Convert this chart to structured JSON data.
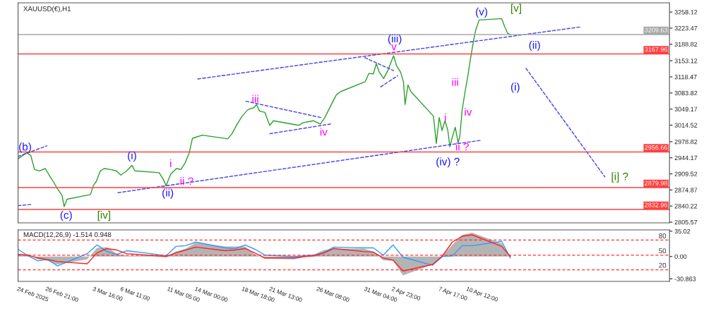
{
  "chart_data": [
    {
      "type": "line",
      "title": "XAUUSD(€),H1",
      "xlim": [
        "2025-02-24T00:00",
        "2025-05-01T00:00"
      ],
      "ylim": [
        2804,
        3278
      ],
      "tick_labels": "y",
      "grid": false,
      "legend": false,
      "xticks": [
        {
          "value": "2025-02-24T00:00",
          "label": null
        },
        {
          "value": "2025-02-26T21:00",
          "label": null
        },
        {
          "value": "2025-03-03T16:00",
          "label": null
        },
        {
          "value": "2025-03-06T11:00",
          "label": null
        },
        {
          "value": "2025-03-11T05:00",
          "label": null
        },
        {
          "value": "2025-03-14T00:00",
          "label": null
        },
        {
          "value": "2025-03-18T18:00",
          "label": null
        },
        {
          "value": "2025-03-21T13:00",
          "label": null
        },
        {
          "value": "2025-03-26T08:00",
          "label": null
        },
        {
          "value": "2025-03-31T04:00",
          "label": null
        },
        {
          "value": "2025-04-02T23:00",
          "label": null
        },
        {
          "value": "2025-04-07T17:00",
          "label": null
        },
        {
          "value": "2025-04-10T12:00",
          "label": null
        }
      ],
      "yticks": [
        2805.57,
        2840.22,
        2874.87,
        2909.52,
        2944.17,
        2978.82,
        3014.52,
        3049.17,
        3083.82,
        3118.47,
        3153.12,
        3188.82,
        3223.47,
        3258.12
      ],
      "series": [
        {
          "color": "#2ca02c",
          "x": [
            "2025-02-24T00:00",
            "2025-02-24T21:00",
            "2025-02-25T07:00",
            "2025-02-25T16:00",
            "2025-02-26T04:00",
            "2025-02-26T18:00",
            "2025-02-27T05:00",
            "2025-02-27T15:00",
            "2025-02-28T00:00",
            "2025-02-28T11:00",
            "2025-02-28T16:00",
            "2025-02-28T23:00",
            "2025-03-03T08:00",
            "2025-03-03T15:00",
            "2025-03-03T22:00",
            "2025-03-04T08:00",
            "2025-03-04T17:00",
            "2025-03-05T09:00",
            "2025-03-05T23:00",
            "2025-03-06T10:00",
            "2025-03-07T00:00",
            "2025-03-07T13:00",
            "2025-03-07T20:00",
            "2025-03-10T07:00",
            "2025-03-10T17:00",
            "2025-03-11T00:00",
            "2025-03-11T11:00",
            "2025-03-12T01:00",
            "2025-03-12T12:00",
            "2025-03-12T22:00",
            "2025-03-13T08:00",
            "2025-03-13T16:00",
            "2025-03-14T02:00",
            "2025-03-14T16:00",
            "2025-03-17T06:00",
            "2025-03-17T16:00",
            "2025-03-18T05:00",
            "2025-03-18T17:00",
            "2025-03-19T07:00",
            "2025-03-19T21:00",
            "2025-03-20T04:00",
            "2025-03-20T11:00",
            "2025-03-21T00:00",
            "2025-03-21T12:00",
            "2025-03-21T21:00",
            "2025-03-24T11:00",
            "2025-03-24T21:00",
            "2025-03-25T11:00",
            "2025-03-25T22:00",
            "2025-03-26T15:00",
            "2025-03-27T02:00",
            "2025-03-27T16:00",
            "2025-03-28T06:00",
            "2025-03-28T17:00",
            "2025-03-31T04:00",
            "2025-03-31T13:00",
            "2025-04-01T00:00",
            "2025-04-01T07:00",
            "2025-04-01T14:00",
            "2025-04-02T01:00",
            "2025-04-02T11:00",
            "2025-04-03T01:00",
            "2025-04-03T08:00",
            "2025-04-03T18:00",
            "2025-04-04T01:00",
            "2025-04-04T05:00",
            "2025-04-04T12:00",
            "2025-04-04T19:00",
            "2025-04-07T02:00",
            "2025-04-07T09:00",
            "2025-04-07T16:00",
            "2025-04-07T23:00",
            "2025-04-08T06:00",
            "2025-04-08T13:00",
            "2025-04-08T18:00",
            "2025-04-09T00:00",
            "2025-04-09T07:00",
            "2025-04-09T14:00",
            "2025-04-09T18:00",
            "2025-04-10T00:00",
            "2025-04-10T07:00",
            "2025-04-10T14:00",
            "2025-04-10T20:00",
            "2025-04-11T04:00",
            "2025-04-11T09:00",
            "2025-04-11T17:00",
            "2025-04-14T00:00",
            "2025-04-14T07:00",
            "2025-04-14T14:00",
            "2025-04-14T21:00"
          ],
          "values": [
            2942,
            2955,
            2949,
            2919,
            2916,
            2921,
            2905,
            2891,
            2877,
            2863,
            2839,
            2855,
            2865,
            2884,
            2893,
            2916,
            2921,
            2919,
            2916,
            2907,
            2916,
            2928,
            2916,
            2912,
            2898,
            2884,
            2909,
            2921,
            2919,
            2933,
            2954,
            2986,
            2989,
            2993,
            2985,
            2996,
            3017,
            3034,
            3048,
            3052,
            3059,
            3045,
            3042,
            3014,
            3024,
            3014,
            3020,
            3022,
            3024,
            3017,
            3031,
            3056,
            3080,
            3087,
            3108,
            3126,
            3125,
            3147,
            3129,
            3115,
            3132,
            3164,
            3143,
            3129,
            3108,
            3059,
            3101,
            3087,
            3034,
            2975,
            3031,
            3003,
            3024,
            3003,
            2968,
            2989,
            3010,
            2977,
            2989,
            3048,
            3087,
            3122,
            3157,
            3199,
            3220,
            3241,
            3244,
            3227,
            3213,
            3210
          ]
        },
        {
          "color": "#4040ee",
          "line_style": "dashed",
          "x": [
            "2025-02-24T00:00",
            "2025-02-25T11:00"
          ],
          "values": [
            2841,
            2844
          ]
        },
        {
          "color": "#4040ee",
          "line_style": "dashed",
          "x": [
            "2025-02-24T00:00",
            "2025-02-26T22:00"
          ],
          "values": [
            2947,
            2970
          ]
        },
        {
          "color": "#4040ee",
          "line_style": "dashed",
          "x": [
            "2025-03-06T03:00",
            "2025-04-11T22:00"
          ],
          "values": [
            2869,
            2982
          ]
        },
        {
          "color": "#4040ee",
          "line_style": "dashed",
          "x": [
            "2025-03-14T05:00",
            "2025-04-21T23:00"
          ],
          "values": [
            3114,
            3226
          ]
        },
        {
          "color": "#4040ee",
          "line_style": "dashed",
          "x": [
            "2025-03-19T02:00",
            "2025-03-26T16:00"
          ],
          "values": [
            3066,
            3031
          ]
        },
        {
          "color": "#4040ee",
          "line_style": "dashed",
          "x": [
            "2025-03-21T12:00",
            "2025-03-27T16:00"
          ],
          "values": [
            2996,
            3017
          ]
        },
        {
          "color": "#4040ee",
          "line_style": "dashed",
          "x": [
            "2025-03-31T03:00",
            "2025-04-03T01:00"
          ],
          "values": [
            3160,
            3132
          ]
        },
        {
          "color": "#4040ee",
          "line_style": "dashed",
          "x": [
            "2025-04-01T18:00",
            "2025-04-03T11:00"
          ],
          "values": [
            3097,
            3121
          ]
        },
        {
          "color": "#4040ee",
          "line_style": "dashed",
          "x": [
            "2025-04-16T11:00",
            "2025-04-24T11:00"
          ],
          "values": [
            3137,
            2903
          ]
        }
      ],
      "ref_lines": [
        {
          "axis": "y",
          "value": 3209.63,
          "label": "3209.63",
          "color": "#a8a8a8"
        },
        {
          "axis": "y",
          "value": 3167.96,
          "label": "3167.96",
          "color": "#ff4040"
        },
        {
          "axis": "y",
          "value": 2956.66,
          "label": "2956.66",
          "color": "#ff4040"
        },
        {
          "axis": "y",
          "value": 2879.98,
          "label": "2879.98",
          "color": "#ff4040"
        },
        {
          "axis": "y",
          "value": 2832.96,
          "label": "2832.96",
          "color": "#ff4040"
        }
      ],
      "annotations": [
        "(b)",
        "(c)",
        "[iv]",
        "(i)",
        "i",
        "ii ?",
        "(ii)",
        "iii",
        "iv",
        "(iii)",
        "v",
        "(iv) ?",
        "i",
        "ii ?",
        "iii",
        "iv",
        "(v)",
        "[v]",
        "(ii)",
        "(i)",
        "[i] ?"
      ]
    },
    {
      "type": "line",
      "title": "MACD(12,26,9) -1.514 0.948",
      "xlim": [
        "2025-02-24T00:00",
        "2025-05-01T00:00"
      ],
      "ylim": [
        -34.4,
        36.8
      ],
      "grid": false,
      "legend": false,
      "xticks": [
        {
          "value": "2025-02-24T00:00",
          "label": "24 Feb 2025"
        },
        {
          "value": "2025-02-26T21:00",
          "label": "26 Feb 21:00"
        },
        {
          "value": "2025-03-03T16:00",
          "label": "3 Mar 16:00"
        },
        {
          "value": "2025-03-06T11:00",
          "label": "6 Mar 11:00"
        },
        {
          "value": "2025-03-11T05:00",
          "label": "11 Mar 05:00"
        },
        {
          "value": "2025-03-14T00:00",
          "label": "14 Mar 00:00"
        },
        {
          "value": "2025-03-18T18:00",
          "label": "18 Mar 18:00"
        },
        {
          "value": "2025-03-21T13:00",
          "label": "21 Mar 13:00"
        },
        {
          "value": "2025-03-26T08:00",
          "label": "26 Mar 08:00"
        },
        {
          "value": "2025-03-31T04:00",
          "label": "31 Mar 04:00"
        },
        {
          "value": "2025-04-02T23:00",
          "label": "2 Apr 23:00"
        },
        {
          "value": "2025-04-07T17:00",
          "label": "7 Apr 17:00"
        },
        {
          "value": "2025-04-10T12:00",
          "label": "10 Apr 12:00"
        }
      ],
      "yticks": [
        -30.863,
        {
          "value": 0,
          "label": "0.00"
        },
        35.02
      ],
      "x": [
        "2025-02-24T00:00",
        "2025-02-25T00:00",
        "2025-02-26T00:00",
        "2025-02-27T00:00",
        "2025-02-28T00:00",
        "2025-03-03T00:00",
        "2025-03-04T00:00",
        "2025-03-05T00:00",
        "2025-03-06T00:00",
        "2025-03-07T00:00",
        "2025-03-10T00:00",
        "2025-03-11T00:00",
        "2025-03-12T00:00",
        "2025-03-13T00:00",
        "2025-03-14T00:00",
        "2025-03-17T00:00",
        "2025-03-18T00:00",
        "2025-03-19T00:00",
        "2025-03-20T00:00",
        "2025-03-21T00:00",
        "2025-03-24T00:00",
        "2025-03-25T00:00",
        "2025-03-26T00:00",
        "2025-03-27T00:00",
        "2025-03-28T00:00",
        "2025-03-31T00:00",
        "2025-04-01T00:00",
        "2025-04-02T00:00",
        "2025-04-03T00:00",
        "2025-04-04T00:00",
        "2025-04-07T00:00",
        "2025-04-08T00:00",
        "2025-04-09T00:00",
        "2025-04-10T00:00",
        "2025-04-11T00:00",
        "2025-04-14T00:00",
        "2025-04-14T21:00"
      ],
      "series": [
        {
          "type": "area",
          "color": "#b4b4b4",
          "values": [
            3,
            3,
            -4,
            -6,
            -11,
            -4,
            12,
            13,
            4,
            1,
            2,
            0,
            7,
            11,
            19,
            14,
            14,
            14,
            3,
            -3,
            -4,
            -1,
            3,
            9,
            11,
            11,
            7,
            -5,
            -6,
            -26,
            -11,
            1,
            16,
            30,
            33,
            18,
            0
          ]
        },
        {
          "color": "#3399ff",
          "values": [
            10,
            1,
            -6,
            -4,
            -13,
            4,
            16,
            7,
            3,
            8,
            3,
            1,
            14,
            15,
            20,
            12,
            11,
            16,
            10,
            2,
            0,
            1,
            2,
            6,
            13,
            12,
            12,
            2,
            16,
            -1,
            -12,
            0,
            1,
            15,
            15,
            21,
            -2
          ]
        },
        {
          "color": "#ff2020",
          "values": [
            3,
            2,
            -2,
            -4,
            -7,
            -10,
            5,
            11,
            9,
            4,
            1,
            0,
            5,
            9,
            13,
            8,
            9,
            11,
            5,
            -2,
            -2,
            0,
            1,
            5,
            11,
            7,
            6,
            -2,
            -5,
            -20,
            -11,
            1,
            20,
            28,
            30,
            14,
            0
          ]
        }
      ],
      "ref_lines": [
        {
          "axis": "y",
          "value": 22.8,
          "color": "#ff3030",
          "line_style": "dashed"
        },
        {
          "axis": "y",
          "value": 1.8,
          "color": "#ff3030",
          "line_style": "dashed"
        },
        {
          "axis": "y",
          "value": -18.4,
          "color": "#ff3030",
          "line_style": "dashed"
        }
      ],
      "annotations": [
        "80",
        "50",
        "20"
      ]
    }
  ]
}
